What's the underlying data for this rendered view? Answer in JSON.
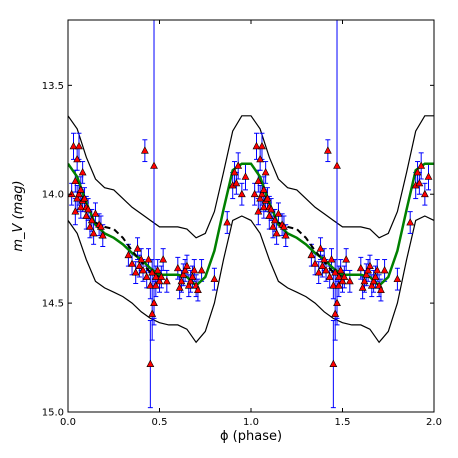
{
  "chart_data": {
    "type": "scatter",
    "title": "",
    "xlabel": "ϕ (phase)",
    "ylabel": "m_V (mag)",
    "xlim": [
      0.0,
      2.0
    ],
    "ylim": [
      15.0,
      13.2
    ],
    "y_inverted": true,
    "grid": false,
    "legend": "none",
    "x_ticks": [
      0.0,
      0.5,
      1.0,
      1.5,
      2.0
    ],
    "x_tick_labels": [
      "0.0",
      "0.5",
      "1.0",
      "1.5",
      "2.0"
    ],
    "y_ticks": [
      13.5,
      14.0,
      14.5,
      15.0
    ],
    "y_tick_labels": [
      "13.5",
      "14.0",
      "14.5",
      "15.0"
    ],
    "colors": {
      "points": "#ff0000",
      "errorbars": "#0000ff",
      "model_fit": "#008000",
      "dashed_fit": "#000000",
      "envelope": "#000000"
    },
    "series": [
      {
        "type": "errorbar_scatter",
        "marker": "triangle",
        "x": [
          0.02,
          0.03,
          0.04,
          0.04,
          0.05,
          0.05,
          0.06,
          0.06,
          0.07,
          0.07,
          0.08,
          0.08,
          0.09,
          0.1,
          0.1,
          0.11,
          0.12,
          0.13,
          0.14,
          0.15,
          0.17,
          0.18,
          0.19,
          0.33,
          0.35,
          0.37,
          0.38,
          0.39,
          0.4,
          0.41,
          0.42,
          0.43,
          0.44,
          0.45,
          0.45,
          0.46,
          0.46,
          0.47,
          0.47,
          0.48,
          0.48,
          0.49,
          0.5,
          0.51,
          0.52,
          0.54,
          0.6,
          0.61,
          0.62,
          0.63,
          0.64,
          0.65,
          0.66,
          0.67,
          0.68,
          0.69,
          0.7,
          0.71,
          0.73,
          0.8,
          0.87,
          0.9,
          0.91,
          0.92,
          0.93,
          0.95,
          0.97
        ],
        "y": [
          14.0,
          13.78,
          13.94,
          14.08,
          13.84,
          14.02,
          14.0,
          13.78,
          14.06,
          13.98,
          14.03,
          13.9,
          14.02,
          14.06,
          14.1,
          14.07,
          14.15,
          14.12,
          14.18,
          14.09,
          14.14,
          14.15,
          14.19,
          14.28,
          14.32,
          14.36,
          14.25,
          14.33,
          14.3,
          14.35,
          13.8,
          14.38,
          14.3,
          14.42,
          14.78,
          14.36,
          14.55,
          13.87,
          14.5,
          14.38,
          14.42,
          14.35,
          14.4,
          14.38,
          14.3,
          14.4,
          14.34,
          14.43,
          14.4,
          14.37,
          14.35,
          14.33,
          14.42,
          14.4,
          14.38,
          14.35,
          14.42,
          14.44,
          14.35,
          14.39,
          14.13,
          13.96,
          13.9,
          13.95,
          13.87,
          14.0,
          13.92
        ],
        "err": [
          0.05,
          0.06,
          0.05,
          0.06,
          0.05,
          0.06,
          0.05,
          0.06,
          0.05,
          0.06,
          0.05,
          0.05,
          0.05,
          0.05,
          0.06,
          0.05,
          0.05,
          0.05,
          0.05,
          0.05,
          0.05,
          0.05,
          0.05,
          0.05,
          0.05,
          0.05,
          0.05,
          0.05,
          0.05,
          0.05,
          0.05,
          0.05,
          0.05,
          0.06,
          0.2,
          0.06,
          0.12,
          0.7,
          0.1,
          0.05,
          0.05,
          0.05,
          0.05,
          0.05,
          0.05,
          0.05,
          0.05,
          0.05,
          0.05,
          0.05,
          0.05,
          0.05,
          0.05,
          0.05,
          0.05,
          0.05,
          0.05,
          0.05,
          0.05,
          0.05,
          0.05,
          0.06,
          0.05,
          0.05,
          0.06,
          0.05,
          0.06
        ],
        "repeated_with_period": 1.0
      },
      {
        "type": "model_fit_solid",
        "x": [
          0.0,
          0.05,
          0.1,
          0.15,
          0.2,
          0.25,
          0.3,
          0.35,
          0.4,
          0.45,
          0.5,
          0.55,
          0.6,
          0.65,
          0.7,
          0.75,
          0.8,
          0.85,
          0.9,
          0.95,
          1.0,
          1.05,
          1.1,
          1.15,
          1.2,
          1.25,
          1.3,
          1.35,
          1.4,
          1.45,
          1.5,
          1.55,
          1.6,
          1.65,
          1.7,
          1.75,
          1.8,
          1.85,
          1.9,
          1.95,
          2.0
        ],
        "y": [
          13.86,
          13.92,
          14.04,
          14.14,
          14.18,
          14.2,
          14.23,
          14.27,
          14.3,
          14.34,
          14.37,
          14.37,
          14.37,
          14.38,
          14.42,
          14.38,
          14.26,
          14.07,
          13.89,
          13.86,
          13.86,
          13.92,
          14.04,
          14.14,
          14.18,
          14.2,
          14.23,
          14.27,
          14.3,
          14.34,
          14.37,
          14.37,
          14.37,
          14.38,
          14.42,
          14.38,
          14.26,
          14.07,
          13.89,
          13.86,
          13.86
        ]
      },
      {
        "type": "model_fit_dashed",
        "x": [
          0.15,
          0.2,
          0.25,
          0.3,
          0.35,
          0.4,
          0.45,
          0.5,
          1.15,
          1.2,
          1.25,
          1.3,
          1.35,
          1.4,
          1.45,
          1.5
        ],
        "y": [
          14.13,
          14.15,
          14.16,
          14.2,
          14.26,
          14.31,
          14.36,
          14.38,
          14.13,
          14.15,
          14.16,
          14.2,
          14.26,
          14.31,
          14.36,
          14.38
        ]
      },
      {
        "type": "envelope_upper",
        "x": [
          0.0,
          0.05,
          0.1,
          0.15,
          0.2,
          0.25,
          0.3,
          0.35,
          0.4,
          0.45,
          0.5,
          0.55,
          0.6,
          0.65,
          0.7,
          0.75,
          0.8,
          0.85,
          0.9,
          0.95,
          1.0,
          1.05,
          1.1,
          1.15,
          1.2,
          1.25,
          1.3,
          1.35,
          1.4,
          1.45,
          1.5,
          1.55,
          1.6,
          1.65,
          1.7,
          1.75,
          1.8,
          1.85,
          1.9,
          1.95,
          2.0
        ],
        "y": [
          13.64,
          13.7,
          13.83,
          13.93,
          13.97,
          13.98,
          14.02,
          14.06,
          14.09,
          14.12,
          14.15,
          14.15,
          14.15,
          14.16,
          14.2,
          14.18,
          14.08,
          13.9,
          13.71,
          13.64,
          13.64,
          13.7,
          13.83,
          13.93,
          13.97,
          13.98,
          14.02,
          14.06,
          14.09,
          14.12,
          14.15,
          14.15,
          14.15,
          14.16,
          14.2,
          14.18,
          14.08,
          13.9,
          13.71,
          13.64,
          13.64
        ]
      },
      {
        "type": "envelope_lower",
        "x": [
          0.0,
          0.05,
          0.1,
          0.15,
          0.2,
          0.25,
          0.3,
          0.35,
          0.4,
          0.45,
          0.5,
          0.55,
          0.6,
          0.65,
          0.7,
          0.75,
          0.8,
          0.85,
          0.9,
          0.95,
          1.0,
          1.05,
          1.1,
          1.15,
          1.2,
          1.25,
          1.3,
          1.35,
          1.4,
          1.45,
          1.5,
          1.55,
          1.6,
          1.65,
          1.7,
          1.75,
          1.8,
          1.85,
          1.9,
          1.95,
          2.0
        ],
        "y": [
          14.12,
          14.18,
          14.3,
          14.4,
          14.43,
          14.45,
          14.47,
          14.5,
          14.54,
          14.57,
          14.59,
          14.6,
          14.6,
          14.62,
          14.68,
          14.63,
          14.5,
          14.3,
          14.12,
          14.1,
          14.12,
          14.18,
          14.3,
          14.4,
          14.43,
          14.45,
          14.47,
          14.5,
          14.54,
          14.57,
          14.59,
          14.6,
          14.6,
          14.62,
          14.68,
          14.63,
          14.5,
          14.3,
          14.12,
          14.1,
          14.12
        ]
      }
    ]
  }
}
